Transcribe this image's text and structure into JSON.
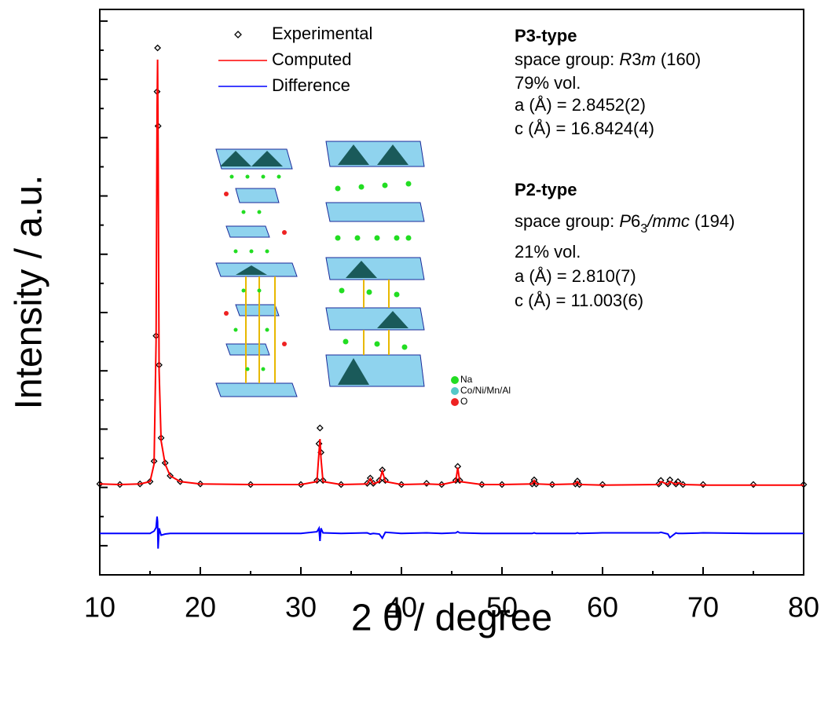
{
  "chart_data": {
    "type": "line",
    "x_label": "2 θ / degree",
    "y_label": "Intensity / a.u.",
    "xlim": [
      10,
      80
    ],
    "xticks": [
      10,
      20,
      30,
      40,
      50,
      60,
      70,
      80
    ],
    "ylim": [
      -1.5,
      8.2
    ],
    "yticks": [
      -1,
      0,
      1,
      2,
      3,
      4,
      5,
      6,
      7,
      8
    ],
    "x": [
      10,
      12,
      14,
      15,
      15.4,
      15.6,
      15.7,
      15.75,
      15.8,
      15.9,
      16.1,
      16.5,
      17,
      18,
      20,
      25,
      30,
      31.6,
      31.8,
      31.9,
      32.0,
      32.2,
      34,
      36.6,
      36.9,
      37.2,
      37.8,
      38.1,
      38.4,
      40,
      42.5,
      44,
      45.4,
      45.6,
      45.8,
      48,
      50,
      53,
      53.2,
      53.4,
      55,
      57.3,
      57.5,
      57.7,
      60,
      65.6,
      65.8,
      66.5,
      66.7,
      67.3,
      67.5,
      68,
      70,
      75,
      80
    ],
    "series": [
      {
        "name": "Experimental",
        "color": "#000000",
        "marker": "diamond",
        "values": [
          0.06,
          0.05,
          0.06,
          0.1,
          0.45,
          2.6,
          6.79,
          7.54,
          6.2,
          2.1,
          0.85,
          0.42,
          0.2,
          0.1,
          0.06,
          0.05,
          0.05,
          0.12,
          0.75,
          1.02,
          0.6,
          0.12,
          0.05,
          0.07,
          0.16,
          0.07,
          0.12,
          0.3,
          0.12,
          0.05,
          0.07,
          0.05,
          0.12,
          0.36,
          0.12,
          0.05,
          0.05,
          0.06,
          0.13,
          0.06,
          0.05,
          0.06,
          0.11,
          0.05,
          0.05,
          0.06,
          0.12,
          0.06,
          0.13,
          0.06,
          0.1,
          0.05,
          0.05,
          0.05,
          0.05
        ]
      },
      {
        "name": "Computed",
        "color": "#ff0000",
        "values": [
          0.06,
          0.05,
          0.06,
          0.1,
          0.4,
          2.5,
          6.5,
          7.34,
          6.0,
          2.0,
          0.8,
          0.4,
          0.2,
          0.1,
          0.06,
          0.05,
          0.05,
          0.1,
          0.6,
          0.83,
          0.5,
          0.1,
          0.05,
          0.06,
          0.15,
          0.06,
          0.1,
          0.28,
          0.1,
          0.05,
          0.06,
          0.05,
          0.1,
          0.34,
          0.1,
          0.05,
          0.05,
          0.06,
          0.12,
          0.06,
          0.05,
          0.06,
          0.1,
          0.05,
          0.04,
          0.05,
          0.1,
          0.05,
          0.1,
          0.05,
          0.08,
          0.05,
          0.04,
          0.04,
          0.04
        ]
      },
      {
        "name": "Difference",
        "color": "#0000ff",
        "values": [
          -0.79,
          -0.79,
          -0.79,
          -0.79,
          -0.75,
          -0.69,
          -0.5,
          -0.59,
          -1.05,
          -0.7,
          -0.82,
          -0.8,
          -0.79,
          -0.79,
          -0.79,
          -0.79,
          -0.79,
          -0.76,
          -0.7,
          -0.92,
          -0.7,
          -0.78,
          -0.79,
          -0.78,
          -0.8,
          -0.79,
          -0.8,
          -0.87,
          -0.77,
          -0.79,
          -0.78,
          -0.79,
          -0.78,
          -0.76,
          -0.78,
          -0.79,
          -0.79,
          -0.79,
          -0.78,
          -0.79,
          -0.79,
          -0.79,
          -0.78,
          -0.79,
          -0.78,
          -0.78,
          -0.77,
          -0.8,
          -0.86,
          -0.78,
          -0.79,
          -0.79,
          -0.78,
          -0.79,
          -0.79
        ]
      }
    ],
    "annotations": [
      [
        [
          {
            "text": "P3-type",
            "bold": true
          }
        ],
        [
          {
            "text": "space group: "
          },
          {
            "text": "R",
            "italic": true
          },
          {
            "text": "3"
          },
          {
            "text": "m",
            "italic": true
          },
          {
            "text": " (160)"
          }
        ],
        [
          {
            "text": "79% vol."
          }
        ],
        [
          {
            "text": "a (Å) = 2.8452(2)"
          }
        ],
        [
          {
            "text": "c (Å) = 16.8424(4)"
          }
        ]
      ],
      [
        [
          {
            "text": "P2-type",
            "bold": true
          }
        ],
        [
          {
            "text": "space group: "
          },
          {
            "text": "P",
            "italic": true
          },
          {
            "text": "6"
          },
          {
            "text": "3",
            "subscript": true
          },
          {
            "text": "/mmc",
            "italic": true
          },
          {
            "text": " (194)"
          }
        ],
        [
          {
            "text": "21% vol."
          }
        ],
        [
          {
            "text": "a (Å) = 2.810(7)"
          }
        ],
        [
          {
            "text": "c (Å) = 11.003(6)"
          }
        ]
      ]
    ],
    "inset_legend": [
      {
        "label": "Na",
        "color": "#22dd22"
      },
      {
        "label": "Co/Ni/Mn/Al",
        "color": "#55c8c8"
      },
      {
        "label": "O",
        "color": "#ee2222"
      }
    ]
  }
}
